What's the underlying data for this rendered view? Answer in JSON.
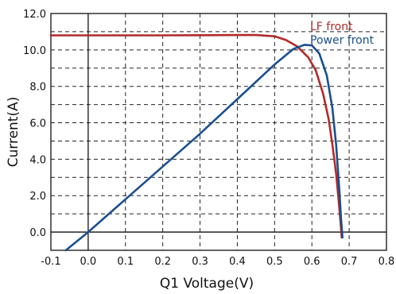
{
  "chart_data": {
    "type": "line",
    "title": "",
    "xlabel": "Q1  Voltage(V)",
    "ylabel": "Current(A)",
    "xlim": [
      -0.1,
      0.8
    ],
    "ylim": [
      -1.0,
      12.0
    ],
    "x_ticks": [
      "-0.1",
      "0.0",
      "0.1",
      "0.2",
      "0.3",
      "0.4",
      "0.5",
      "0.6",
      "0.7",
      "0.8"
    ],
    "y_ticks": [
      "0.0",
      "2.0",
      "4.0",
      "6.0",
      "8.0",
      "10.0",
      "12.0"
    ],
    "grid": true,
    "legend_placement": "top-right",
    "series": [
      {
        "name": "LF front",
        "color": "#b22a2a",
        "points": [
          [
            -0.1,
            10.8
          ],
          [
            0.0,
            10.8
          ],
          [
            0.1,
            10.8
          ],
          [
            0.2,
            10.8
          ],
          [
            0.3,
            10.81
          ],
          [
            0.4,
            10.82
          ],
          [
            0.45,
            10.82
          ],
          [
            0.5,
            10.75
          ],
          [
            0.53,
            10.55
          ],
          [
            0.56,
            10.2
          ],
          [
            0.59,
            9.6
          ],
          [
            0.61,
            8.9
          ],
          [
            0.63,
            7.6
          ],
          [
            0.645,
            6.2
          ],
          [
            0.655,
            4.8
          ],
          [
            0.665,
            3.2
          ],
          [
            0.672,
            1.7
          ],
          [
            0.677,
            0.5
          ],
          [
            0.68,
            -0.3
          ]
        ]
      },
      {
        "name": "Power front",
        "color": "#1a4f8f",
        "points": [
          [
            -0.06,
            -1.0
          ],
          [
            0.0,
            0.0
          ],
          [
            0.1,
            1.8
          ],
          [
            0.2,
            3.6
          ],
          [
            0.3,
            5.4
          ],
          [
            0.4,
            7.3
          ],
          [
            0.5,
            9.2
          ],
          [
            0.55,
            10.05
          ],
          [
            0.58,
            10.28
          ],
          [
            0.6,
            10.25
          ],
          [
            0.62,
            9.8
          ],
          [
            0.64,
            8.6
          ],
          [
            0.655,
            6.8
          ],
          [
            0.665,
            4.8
          ],
          [
            0.673,
            2.5
          ],
          [
            0.678,
            0.8
          ],
          [
            0.682,
            -0.3
          ]
        ]
      }
    ]
  }
}
